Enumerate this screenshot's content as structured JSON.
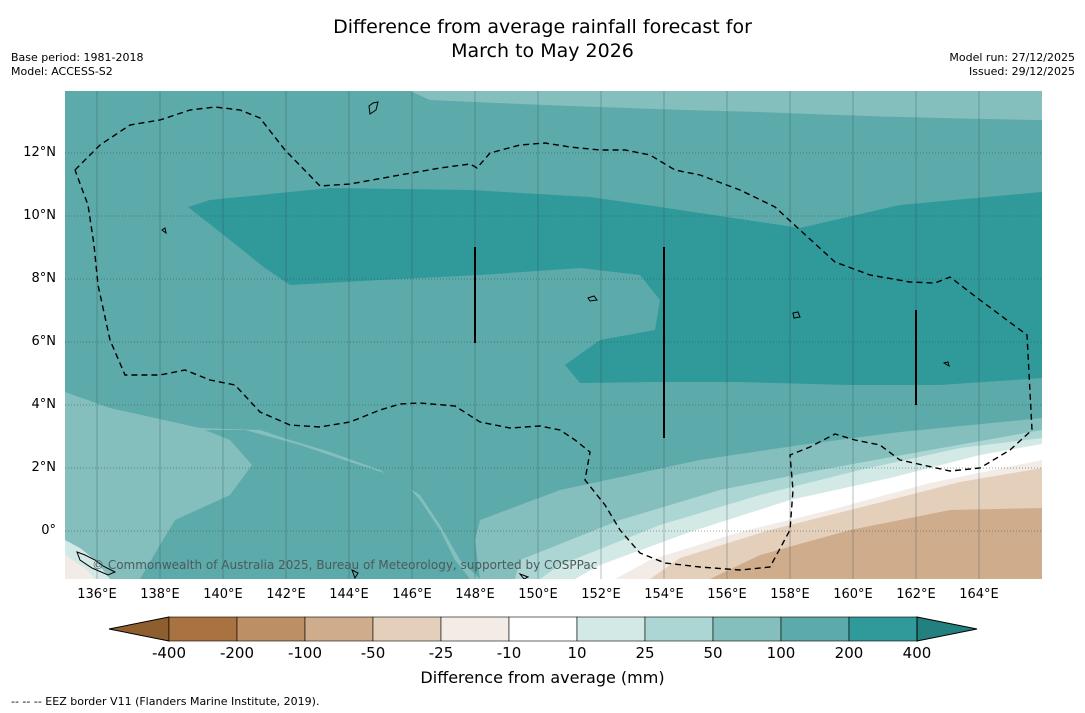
{
  "title": {
    "line1": "Difference from average rainfall forecast for",
    "line2": "March to May 2026"
  },
  "meta_left": {
    "base_period": "Base period: 1981-2018",
    "model": "Model: ACCESS-S2"
  },
  "meta_right": {
    "model_run": "Model run: 27/12/2025",
    "issued": "Issued: 29/12/2025"
  },
  "axes": {
    "lat_labels": [
      "12°N",
      "10°N",
      "8°N",
      "6°N",
      "4°N",
      "2°N",
      "0°"
    ],
    "lon_labels": [
      "136°E",
      "138°E",
      "140°E",
      "142°E",
      "144°E",
      "146°E",
      "148°E",
      "150°E",
      "152°E",
      "154°E",
      "156°E",
      "158°E",
      "160°E",
      "162°E",
      "164°E"
    ]
  },
  "copyright": "© Commonwealth of Australia 2025, Bureau of Meteorology, supported by COSPPac",
  "colorbar": {
    "labels": [
      "-400",
      "-200",
      "-100",
      "-50",
      "-25",
      "-10",
      "10",
      "25",
      "50",
      "100",
      "200",
      "400"
    ],
    "colors": [
      "#a87340",
      "#bc8f65",
      "#cfad8c",
      "#e4cfbb",
      "#f3ece6",
      "#ffffff",
      "#d3e9e6",
      "#acd6d3",
      "#84bfbd",
      "#5caaa9",
      "#30999a",
      "#22807f"
    ],
    "title": "Difference from average (mm)"
  },
  "footnote": "--  --  -- EEZ border V11 (Flanders Marine Institute, 2019)."
}
